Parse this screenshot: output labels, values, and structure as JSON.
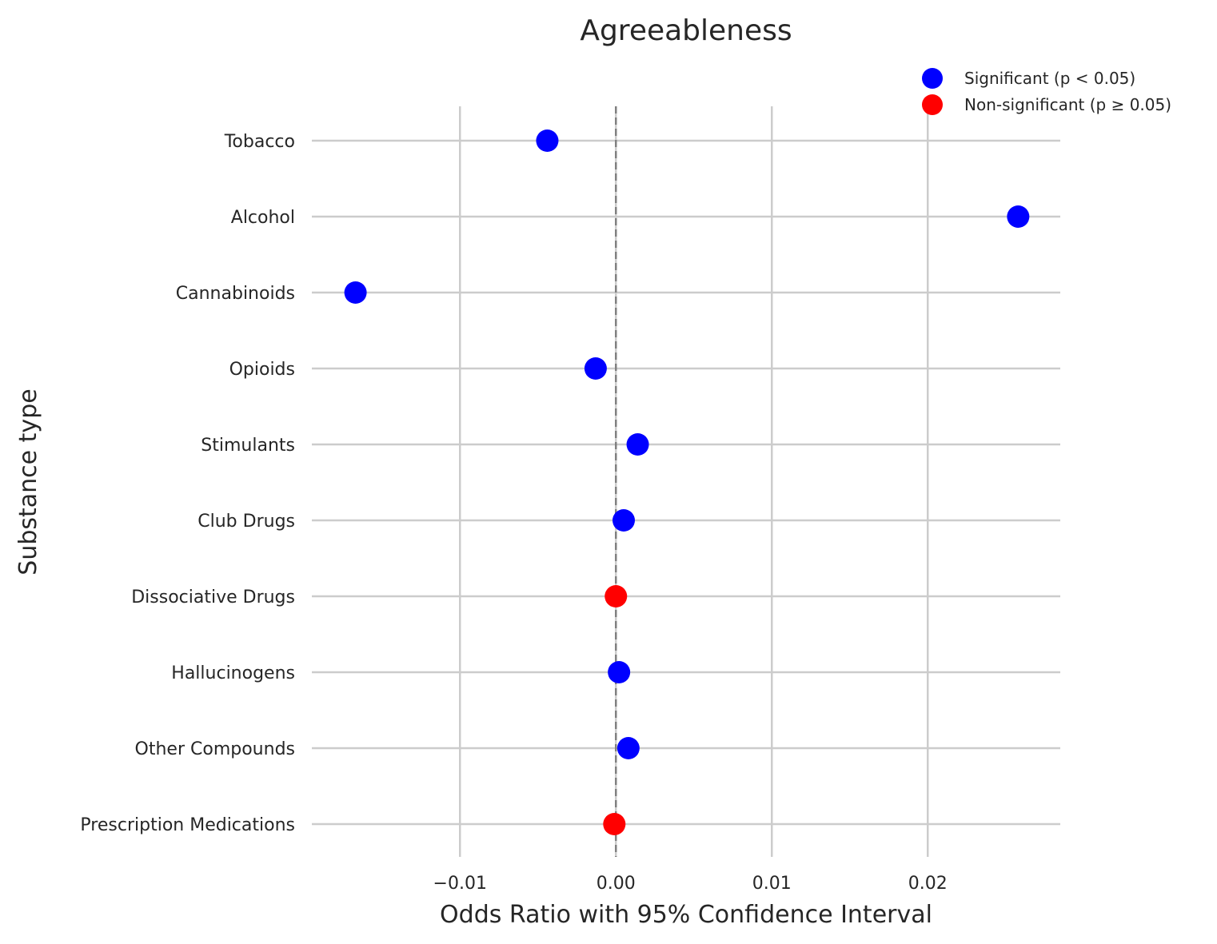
{
  "chart_data": {
    "type": "scatter",
    "title": "Agreeableness",
    "xlabel": "Odds Ratio with 95% Confidence Interval",
    "ylabel": "Substance type",
    "xlim": [
      -0.0195,
      0.0285
    ],
    "xticks": [
      {
        "value": -0.01,
        "label": "−0.01"
      },
      {
        "value": 0.0,
        "label": "0.00"
      },
      {
        "value": 0.01,
        "label": "0.01"
      },
      {
        "value": 0.02,
        "label": "0.02"
      }
    ],
    "grid": true,
    "reference_line": {
      "x": 0.0,
      "style": "dashed",
      "color": "#808080"
    },
    "legend": {
      "placement": "top-right",
      "entries": [
        {
          "label": "Significant (p < 0.05)",
          "color": "#0000ff"
        },
        {
          "label": "Non-significant (p ≥ 0.05)",
          "color": "#ff0000"
        }
      ]
    },
    "categories": [
      "Tobacco",
      "Alcohol",
      "Cannabinoids",
      "Opioids",
      "Stimulants",
      "Club Drugs",
      "Dissociative Drugs",
      "Hallucinogens",
      "Other Compounds",
      "Prescription Medications"
    ],
    "points": [
      {
        "category": "Tobacco",
        "value": -0.0044,
        "significant": true
      },
      {
        "category": "Alcohol",
        "value": 0.0258,
        "significant": true
      },
      {
        "category": "Cannabinoids",
        "value": -0.0167,
        "significant": true
      },
      {
        "category": "Opioids",
        "value": -0.0013,
        "significant": true
      },
      {
        "category": "Stimulants",
        "value": 0.0014,
        "significant": true
      },
      {
        "category": "Club Drugs",
        "value": 0.0005,
        "significant": true
      },
      {
        "category": "Dissociative Drugs",
        "value": 0.0,
        "significant": false
      },
      {
        "category": "Hallucinogens",
        "value": 0.0002,
        "significant": true
      },
      {
        "category": "Other Compounds",
        "value": 0.0008,
        "significant": true
      },
      {
        "category": "Prescription Medications",
        "value": -0.0001,
        "significant": false
      }
    ]
  }
}
